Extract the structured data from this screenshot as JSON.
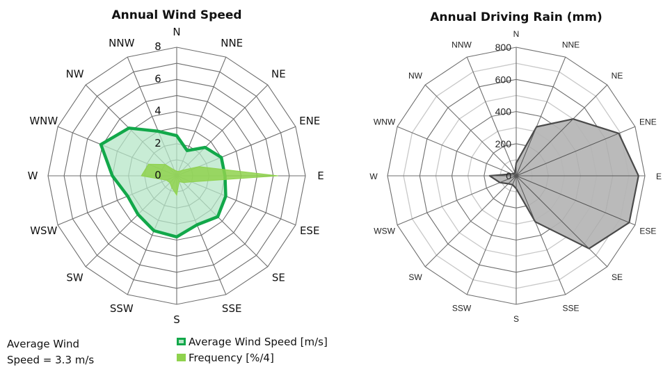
{
  "colors": {
    "wind_line": "#12a84a",
    "wind_fill": "#b6e6c7",
    "freq_fill": "#8fd24e",
    "rain_fill": "#b4b4b4",
    "rain_line": "#4a4a4a",
    "grid_dark": "#6e6e6e",
    "grid_light": "#c8c8c8"
  },
  "chart_data": [
    {
      "type": "radar",
      "title": "Annual Wind Speed",
      "directions": [
        "N",
        "NNE",
        "NE",
        "ENE",
        "E",
        "ESE",
        "SE",
        "SSE",
        "S",
        "SSW",
        "SW",
        "WSW",
        "W",
        "WNW",
        "NW",
        "NNW"
      ],
      "rlim": [
        0,
        8
      ],
      "tick_values": [
        0,
        2,
        4,
        6,
        8
      ],
      "tick_labels": [
        "0",
        "2",
        "4",
        "6",
        "8"
      ],
      "grid": true,
      "series": [
        {
          "name": "Average Wind Speed [m/s]",
          "style": "line",
          "values": [
            2.5,
            1.7,
            2.5,
            3.0,
            3.0,
            3.3,
            3.6,
            3.3,
            3.8,
            3.7,
            3.4,
            3.3,
            4.0,
            5.1,
            4.2,
            3.0
          ]
        },
        {
          "name": "Frequency [%/4]",
          "style": "filled",
          "values": [
            0.3,
            0.3,
            0.5,
            1.5,
            6.3,
            1.0,
            0.6,
            0.4,
            1.2,
            0.8,
            0.6,
            0.7,
            2.2,
            1.9,
            1.0,
            0.4
          ]
        }
      ]
    },
    {
      "type": "radar",
      "title": "Annual Driving Rain (mm)",
      "directions": [
        "N",
        "NNE",
        "NE",
        "ENE",
        "E",
        "ESE",
        "SE",
        "SSE",
        "S",
        "SSW",
        "SW",
        "WSW",
        "W",
        "WNW",
        "NW",
        "NNW"
      ],
      "rlim": [
        0,
        800
      ],
      "tick_values": [
        0,
        200,
        400,
        600,
        800
      ],
      "tick_labels": [
        "0",
        "200",
        "400",
        "600",
        "800"
      ],
      "grid": true,
      "series": [
        {
          "name": "Driving Rain",
          "style": "filled",
          "values": [
            80,
            330,
            500,
            690,
            760,
            760,
            640,
            310,
            80,
            60,
            70,
            110,
            165,
            30,
            20,
            20
          ]
        }
      ]
    }
  ],
  "legend": {
    "wind_speed_label": "Average Wind Speed [m/s]",
    "frequency_label": "Frequency [%/4]"
  },
  "summary": {
    "line1": "Average Wind",
    "line2": "Speed = 3.3 m/s"
  }
}
